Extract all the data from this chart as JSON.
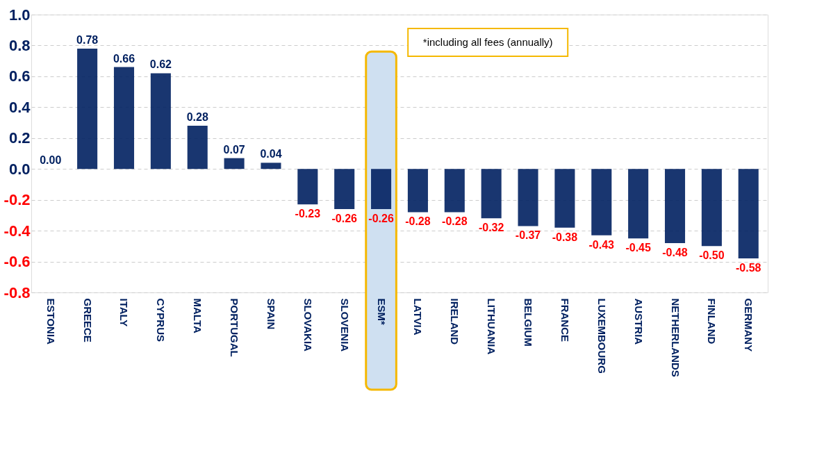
{
  "chart_data": {
    "type": "bar",
    "categories": [
      "ESTONIA",
      "GREECE",
      "ITALY",
      "CYPRUS",
      "MALTA",
      "PORTUGAL",
      "SPAIN",
      "SLOVAKIA",
      "SLOVENIA",
      "ESM*",
      "LATVIA",
      "IRELAND",
      "LITHUANIA",
      "BELGIUM",
      "FRANCE",
      "LUXEMBOURG",
      "AUSTRIA",
      "NETHERLANDS",
      "FINLAND",
      "GERMANY"
    ],
    "values": [
      0.0,
      0.78,
      0.66,
      0.62,
      0.28,
      0.07,
      0.04,
      -0.23,
      -0.26,
      -0.26,
      -0.28,
      -0.28,
      -0.32,
      -0.37,
      -0.38,
      -0.43,
      -0.45,
      -0.48,
      -0.5,
      -0.58
    ],
    "color": "#002060",
    "value_labels": [
      "0.00",
      "0.78",
      "0.66",
      "0.62",
      "0.28",
      "0.07",
      "0.04",
      "-0.23",
      "-0.26",
      "-0.26",
      "-0.28",
      "-0.28",
      "-0.32",
      "-0.37",
      "-0.38",
      "-0.43",
      "-0.45",
      "-0.48",
      "-0.50",
      "-0.58"
    ],
    "ylim": [
      -0.8,
      1.0
    ],
    "yticks": [
      -0.8,
      -0.6,
      -0.4,
      -0.2,
      {
        "value": 0,
        "label": "0.0"
      },
      0.2,
      0.4,
      0.6,
      0.8,
      {
        "value": 1,
        "label": "1.0"
      }
    ],
    "grid": "y",
    "bands": [
      {
        "axis": "x",
        "from": "ESM*",
        "to": "ESM*",
        "color": "#cfe0f1"
      }
    ],
    "annotations": [
      "*including all fees (annually)"
    ]
  }
}
